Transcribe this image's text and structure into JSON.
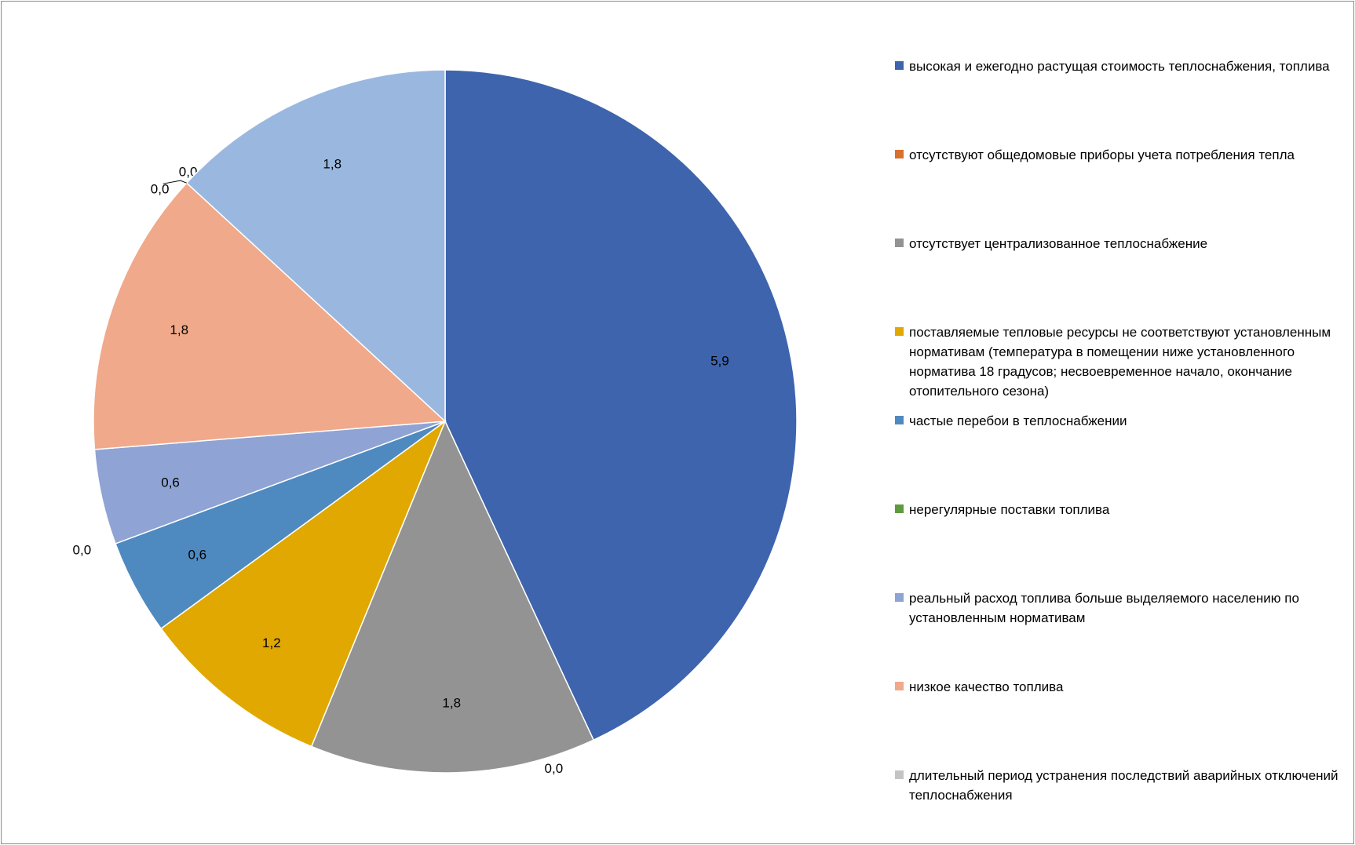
{
  "chart_data": {
    "type": "pie",
    "categories": [
      "высокая и ежегодно растущая стоимость теплоснабжения, топлива",
      "отсутствуют общедомовые приборы учета потребления тепла",
      "отсутствует централизованное теплоснабжение",
      "поставляемые тепловые ресурсы не соответствуют установленным нормативам (температура в помещении ниже установленного норматива 18 градусов; несвоевременное начало, окончание отопительного сезона)",
      "частые перебои в теплоснабжении",
      "нерегулярные поставки топлива",
      "реальный расход топлива больше выделяемого населению по установленным нормативам",
      "низкое качество топлива",
      "длительный период устранения последствий аварийных отключений теплоснабжения",
      "",
      ""
    ],
    "values": [
      5.9,
      0.0,
      1.8,
      1.2,
      0.6,
      0.0,
      0.6,
      1.8,
      0.0,
      0.0,
      1.8
    ],
    "data_labels": [
      "5,9",
      "0,0",
      "1,8",
      "1,2",
      "0,6",
      "0,0",
      "0,6",
      "1,8",
      "0,0",
      "0,0",
      "1,8"
    ],
    "colors": [
      "#3d64ad",
      "#d9702d",
      "#939393",
      "#e0a800",
      "#4e8abf",
      "#5f9a3f",
      "#8fa3d4",
      "#f0a98a",
      "#c4c4c4",
      "#8b5a3a",
      "#9ab8df"
    ],
    "legend_position": "right",
    "title": ""
  },
  "legend": {
    "items": [
      {
        "label": "высокая и ежегодно растущая стоимость теплоснабжения, топлива",
        "color": "#3d64ad"
      },
      {
        "label": "отсутствуют общедомовые приборы учета потребления тепла",
        "color": "#d9702d"
      },
      {
        "label": "отсутствует централизованное теплоснабжение",
        "color": "#939393"
      },
      {
        "label": "поставляемые тепловые ресурсы не соответствуют установленным нормативам (температура в помещении ниже установленного норматива 18 градусов; несвоевременное начало, окончание отопительного сезона)",
        "color": "#e0a800"
      },
      {
        "label": "частые перебои в теплоснабжении",
        "color": "#4e8abf"
      },
      {
        "label": "нерегулярные поставки топлива",
        "color": "#5f9a3f"
      },
      {
        "label": "реальный расход топлива больше выделяемого населению по установленным нормативам",
        "color": "#8fa3d4"
      },
      {
        "label": "низкое качество топлива",
        "color": "#f0a98a"
      },
      {
        "label": "длительный период устранения последствий аварийных отключений теплоснабжения",
        "color": "#c4c4c4"
      }
    ]
  }
}
